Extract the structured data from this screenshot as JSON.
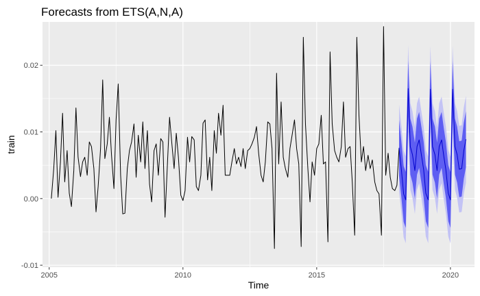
{
  "chart_data": {
    "type": "line",
    "title": "Forecasts from ETS(A,N,A)",
    "xlabel": "Time",
    "ylabel": "train",
    "xlim": [
      2004.75,
      2020.9
    ],
    "ylim": [
      -0.0103,
      0.0265
    ],
    "x_ticks": [
      {
        "value": 2005,
        "label": "2005"
      },
      {
        "value": 2010,
        "label": "2010"
      },
      {
        "value": 2015,
        "label": "2015"
      },
      {
        "value": 2020,
        "label": "2020"
      }
    ],
    "y_ticks": [
      {
        "value": -0.01,
        "label": "-0.01"
      },
      {
        "value": 0.0,
        "label": "0.00"
      },
      {
        "value": 0.01,
        "label": "0.01"
      },
      {
        "value": 0.02,
        "label": "0.02"
      }
    ],
    "grid": true,
    "colors": {
      "panel": "#ebebeb",
      "grid_major": "#ffffff",
      "series": "#000000",
      "forecast": "#0000cc",
      "band_80": "#5e5ef2",
      "band_95": "#c3c3f5"
    },
    "series": [
      {
        "values": [
          [
            2005.08,
            0.0
          ],
          [
            2005.17,
            0.0045
          ],
          [
            2005.25,
            0.0102
          ],
          [
            2005.33,
            0.0002
          ],
          [
            2005.42,
            0.0055
          ],
          [
            2005.5,
            0.0128
          ],
          [
            2005.58,
            0.0025
          ],
          [
            2005.67,
            0.0072
          ],
          [
            2005.75,
            0.0008
          ],
          [
            2005.83,
            -0.0012
          ],
          [
            2005.92,
            0.0042
          ],
          [
            2006.0,
            0.0136
          ],
          [
            2006.08,
            0.0062
          ],
          [
            2006.17,
            0.0033
          ],
          [
            2006.25,
            0.0055
          ],
          [
            2006.33,
            0.0062
          ],
          [
            2006.42,
            0.0035
          ],
          [
            2006.5,
            0.0085
          ],
          [
            2006.58,
            0.0078
          ],
          [
            2006.67,
            0.0045
          ],
          [
            2006.75,
            -0.002
          ],
          [
            2006.83,
            0.0018
          ],
          [
            2006.92,
            0.0075
          ],
          [
            2007.0,
            0.0178
          ],
          [
            2007.08,
            0.006
          ],
          [
            2007.17,
            0.0082
          ],
          [
            2007.25,
            0.0122
          ],
          [
            2007.33,
            0.0065
          ],
          [
            2007.42,
            0.0015
          ],
          [
            2007.5,
            0.0118
          ],
          [
            2007.58,
            0.0172
          ],
          [
            2007.67,
            0.0035
          ],
          [
            2007.75,
            -0.0023
          ],
          [
            2007.83,
            -0.0022
          ],
          [
            2007.92,
            0.0045
          ],
          [
            2008.0,
            0.0072
          ],
          [
            2008.08,
            0.0085
          ],
          [
            2008.17,
            0.0112
          ],
          [
            2008.25,
            0.0032
          ],
          [
            2008.33,
            0.0095
          ],
          [
            2008.42,
            0.0055
          ],
          [
            2008.5,
            0.0115
          ],
          [
            2008.58,
            0.0045
          ],
          [
            2008.67,
            0.0102
          ],
          [
            2008.75,
            0.0022
          ],
          [
            2008.83,
            -0.0005
          ],
          [
            2008.92,
            0.0072
          ],
          [
            2009.0,
            0.0082
          ],
          [
            2009.08,
            0.0035
          ],
          [
            2009.17,
            0.009
          ],
          [
            2009.25,
            0.0085
          ],
          [
            2009.33,
            -0.0028
          ],
          [
            2009.42,
            0.0052
          ],
          [
            2009.5,
            0.0122
          ],
          [
            2009.58,
            0.0085
          ],
          [
            2009.67,
            0.0045
          ],
          [
            2009.75,
            0.0098
          ],
          [
            2009.83,
            0.0062
          ],
          [
            2009.92,
            0.0005
          ],
          [
            2010.0,
            -0.0003
          ],
          [
            2010.08,
            0.0012
          ],
          [
            2010.17,
            0.0092
          ],
          [
            2010.25,
            0.0055
          ],
          [
            2010.33,
            0.0093
          ],
          [
            2010.42,
            0.0088
          ],
          [
            2010.5,
            0.0018
          ],
          [
            2010.58,
            0.0012
          ],
          [
            2010.67,
            0.0035
          ],
          [
            2010.75,
            0.0113
          ],
          [
            2010.83,
            0.0118
          ],
          [
            2010.92,
            0.0028
          ],
          [
            2011.0,
            0.0062
          ],
          [
            2011.08,
            0.0012
          ],
          [
            2011.17,
            0.0102
          ],
          [
            2011.25,
            0.0068
          ],
          [
            2011.33,
            0.0128
          ],
          [
            2011.42,
            0.0095
          ],
          [
            2011.5,
            0.014
          ],
          [
            2011.58,
            0.0035
          ],
          [
            2011.67,
            0.0035
          ],
          [
            2011.75,
            0.0035
          ],
          [
            2011.83,
            0.0055
          ],
          [
            2011.92,
            0.0075
          ],
          [
            2012.0,
            0.0052
          ],
          [
            2012.08,
            0.0062
          ],
          [
            2012.17,
            0.0048
          ],
          [
            2012.25,
            0.0075
          ],
          [
            2012.33,
            0.0045
          ],
          [
            2012.42,
            0.0072
          ],
          [
            2012.5,
            0.0075
          ],
          [
            2012.58,
            0.0082
          ],
          [
            2012.67,
            0.0092
          ],
          [
            2012.75,
            0.0108
          ],
          [
            2012.83,
            0.0068
          ],
          [
            2012.92,
            0.0035
          ],
          [
            2013.0,
            0.0025
          ],
          [
            2013.08,
            0.0055
          ],
          [
            2013.17,
            0.0115
          ],
          [
            2013.25,
            0.0112
          ],
          [
            2013.33,
            0.0075
          ],
          [
            2013.42,
            -0.0075
          ],
          [
            2013.5,
            0.0188
          ],
          [
            2013.58,
            0.0052
          ],
          [
            2013.67,
            0.0145
          ],
          [
            2013.75,
            0.0062
          ],
          [
            2013.83,
            0.0045
          ],
          [
            2013.92,
            0.0032
          ],
          [
            2014.0,
            0.0075
          ],
          [
            2014.08,
            0.0095
          ],
          [
            2014.17,
            0.0118
          ],
          [
            2014.25,
            0.0075
          ],
          [
            2014.33,
            0.0052
          ],
          [
            2014.42,
            -0.0072
          ],
          [
            2014.5,
            0.0242
          ],
          [
            2014.58,
            0.0112
          ],
          [
            2014.67,
            0.0045
          ],
          [
            2014.75,
            -0.0005
          ],
          [
            2014.83,
            0.0055
          ],
          [
            2014.92,
            0.0035
          ],
          [
            2015.0,
            0.0075
          ],
          [
            2015.08,
            0.0082
          ],
          [
            2015.17,
            0.0125
          ],
          [
            2015.25,
            0.0052
          ],
          [
            2015.33,
            0.0055
          ],
          [
            2015.42,
            -0.0065
          ],
          [
            2015.5,
            0.022
          ],
          [
            2015.58,
            0.0112
          ],
          [
            2015.67,
            0.0072
          ],
          [
            2015.75,
            0.0062
          ],
          [
            2015.83,
            0.0055
          ],
          [
            2015.92,
            0.0078
          ],
          [
            2016.0,
            0.0145
          ],
          [
            2016.08,
            0.0062
          ],
          [
            2016.17,
            0.0075
          ],
          [
            2016.25,
            0.0078
          ],
          [
            2016.33,
            0.0025
          ],
          [
            2016.42,
            -0.0055
          ],
          [
            2016.5,
            0.0242
          ],
          [
            2016.58,
            0.0125
          ],
          [
            2016.67,
            0.0055
          ],
          [
            2016.75,
            0.0078
          ],
          [
            2016.83,
            0.0042
          ],
          [
            2016.92,
            0.0065
          ],
          [
            2017.0,
            0.0045
          ],
          [
            2017.08,
            0.0058
          ],
          [
            2017.17,
            0.0025
          ],
          [
            2017.25,
            0.0012
          ],
          [
            2017.33,
            0.0007
          ],
          [
            2017.42,
            -0.0055
          ],
          [
            2017.5,
            0.0258
          ],
          [
            2017.58,
            0.0035
          ],
          [
            2017.67,
            0.0068
          ],
          [
            2017.75,
            0.0032
          ],
          [
            2017.83,
            0.0015
          ],
          [
            2017.92,
            0.0012
          ],
          [
            2018.0,
            0.002
          ],
          [
            2018.08,
            0.0076
          ]
        ]
      },
      {
        "name": "forecast",
        "values": [
          [
            2018.08,
            0.0076
          ],
          [
            2018.17,
            0.0042
          ],
          [
            2018.25,
            0.0007
          ],
          [
            2018.33,
            -0.0002
          ],
          [
            2018.42,
            0.0165
          ],
          [
            2018.5,
            0.0078
          ],
          [
            2018.58,
            0.0066
          ],
          [
            2018.67,
            0.0042
          ],
          [
            2018.75,
            0.0078
          ],
          [
            2018.83,
            0.0088
          ],
          [
            2018.92,
            0.0064
          ],
          [
            2019.0,
            0.0043
          ],
          [
            2019.08,
            0.0008
          ],
          [
            2019.17,
            -0.0002
          ],
          [
            2019.25,
            0.0164
          ],
          [
            2019.33,
            0.0078
          ],
          [
            2019.42,
            0.0066
          ],
          [
            2019.5,
            0.0042
          ],
          [
            2019.58,
            0.0078
          ],
          [
            2019.67,
            0.0088
          ],
          [
            2019.75,
            0.0064
          ],
          [
            2019.83,
            0.0043
          ],
          [
            2019.92,
            0.0008
          ],
          [
            2020.0,
            -0.0002
          ],
          [
            2020.08,
            0.0164
          ],
          [
            2020.17,
            0.0078
          ],
          [
            2020.25,
            0.0066
          ],
          [
            2020.33,
            0.0044
          ],
          [
            2020.42,
            0.0045
          ],
          [
            2020.5,
            0.0072
          ],
          [
            2020.58,
            0.0089
          ]
        ],
        "lo80_offset": 0.0042,
        "lo95_offset": 0.0065
      }
    ]
  }
}
